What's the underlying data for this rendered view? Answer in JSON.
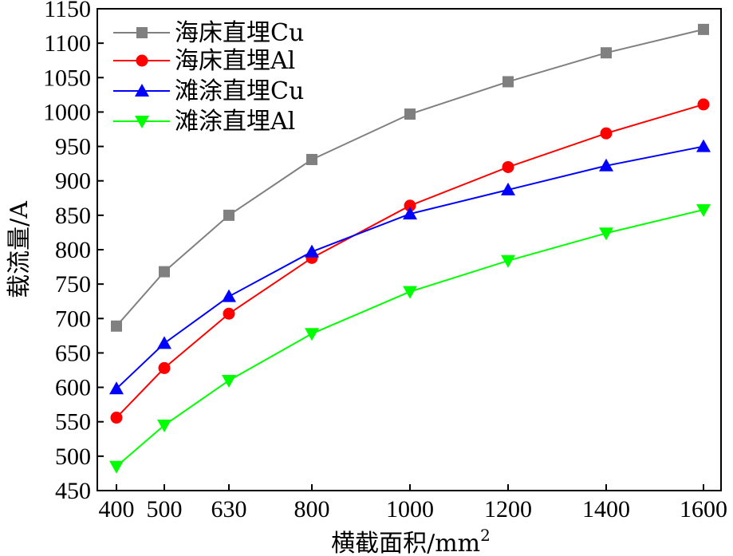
{
  "chart_data": {
    "type": "line",
    "xlabel": "横截面积/mm",
    "xlabel_sup": "2",
    "ylabel": "载流量/A",
    "x": [
      400,
      500,
      630,
      800,
      1000,
      1200,
      1400,
      1600
    ],
    "ylim": [
      450,
      1150
    ],
    "yticks": [
      450,
      500,
      550,
      600,
      650,
      700,
      750,
      800,
      850,
      900,
      950,
      1000,
      1050,
      1100,
      1150
    ],
    "grid": false,
    "legend_position": "top-left",
    "series": [
      {
        "name": "海床直埋Cu",
        "color": "#808080",
        "marker": "square",
        "values": [
          689,
          768,
          850,
          931,
          997,
          1044,
          1086,
          1120
        ]
      },
      {
        "name": "海床直埋Al",
        "color": "#ff0000",
        "marker": "circle",
        "values": [
          556,
          628,
          707,
          788,
          864,
          920,
          969,
          1011
        ]
      },
      {
        "name": "滩涂直埋Cu",
        "color": "#0000ff",
        "marker": "triangle-up",
        "values": [
          598,
          664,
          732,
          797,
          852,
          887,
          922,
          950
        ]
      },
      {
        "name": "滩涂直埋Al",
        "color": "#00ff00",
        "marker": "triangle-down",
        "values": [
          485,
          545,
          610,
          678,
          739,
          784,
          824,
          858
        ]
      }
    ]
  }
}
